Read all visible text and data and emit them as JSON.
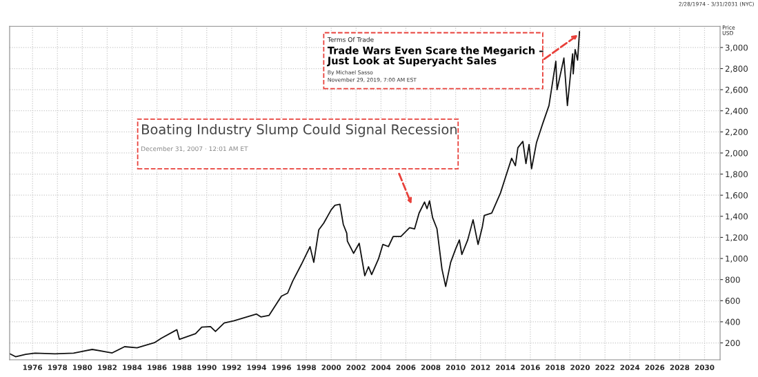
{
  "chart_data": {
    "type": "line",
    "ylabel": "Price\nUSD",
    "xlim": [
      1974.16,
      2031.25
    ],
    "ylim": [
      40,
      3200
    ],
    "xticks": [
      1976,
      1978,
      1980,
      1982,
      1984,
      1986,
      1988,
      1990,
      1992,
      1994,
      1996,
      1998,
      2000,
      2002,
      2004,
      2006,
      2008,
      2010,
      2012,
      2014,
      2016,
      2018,
      2020,
      2022,
      2024,
      2026,
      2028,
      2030
    ],
    "yticks": [
      200,
      400,
      600,
      800,
      {
        "value": 1000,
        "label": "1,000"
      },
      {
        "value": 1200,
        "label": "1,200"
      },
      {
        "value": 1400,
        "label": "1,400"
      },
      {
        "value": 1600,
        "label": "1,600"
      },
      {
        "value": 1800,
        "label": "1,800"
      },
      {
        "value": 2000,
        "label": "2,000"
      },
      {
        "value": 2200,
        "label": "2,200"
      },
      {
        "value": 2400,
        "label": "2,400"
      },
      {
        "value": 2600,
        "label": "2,600"
      },
      {
        "value": 2800,
        "label": "2,800"
      },
      {
        "value": 3000,
        "label": "3,000"
      }
    ],
    "grid": true,
    "marker": "none",
    "line_style": "solid",
    "series": [
      {
        "color": "#111111",
        "x": [
          1974.2,
          1974.64,
          1975.45,
          1976.2,
          1977.8,
          1979.3,
          1980.8,
          1982.4,
          1983.4,
          1984.4,
          1985.8,
          1986.35,
          1987.6,
          1987.8,
          1989.1,
          1989.6,
          1990.3,
          1990.7,
          1991.4,
          1992.2,
          1994.0,
          1994.35,
          1995.0,
          1996.0,
          1996.5,
          1996.9,
          1997.6,
          1998.3,
          1998.6,
          1999.0,
          1999.4,
          2000.0,
          2000.3,
          2000.7,
          2000.97,
          2001.25,
          2001.3,
          2001.8,
          2002.25,
          2002.7,
          2003.0,
          2003.25,
          2003.8,
          2004.15,
          2004.6,
          2004.98,
          2005.6,
          2006.3,
          2006.7,
          2007.06,
          2007.5,
          2007.7,
          2007.9,
          2008.15,
          2008.5,
          2008.9,
          2009.2,
          2009.6,
          2010.0,
          2010.3,
          2010.5,
          2010.97,
          2011.4,
          2011.8,
          2012.15,
          2012.3,
          2012.9,
          2013.6,
          2014.0,
          2014.5,
          2014.8,
          2015.0,
          2015.4,
          2015.65,
          2015.9,
          2016.1,
          2016.5,
          2017.0,
          2017.5,
          2018.05,
          2018.15,
          2018.7,
          2018.98,
          2019.3,
          2019.4,
          2019.45,
          2019.6,
          2019.8,
          2019.95
        ],
        "values": [
          96,
          69,
          92,
          103,
          96,
          103,
          138,
          105,
          164,
          154,
          202,
          244,
          325,
          234,
          287,
          350,
          354,
          308,
          389,
          410,
          473,
          446,
          460,
          643,
          672,
          784,
          943,
          1112,
          964,
          1271,
          1335,
          1462,
          1504,
          1514,
          1324,
          1240,
          1165,
          1049,
          1144,
          837,
          922,
          848,
          996,
          1133,
          1113,
          1208,
          1208,
          1292,
          1281,
          1430,
          1535,
          1472,
          1546,
          1387,
          1281,
          900,
          735,
          964,
          1091,
          1176,
          1038,
          1176,
          1367,
          1133,
          1303,
          1408,
          1430,
          1620,
          1768,
          1950,
          1880,
          2050,
          2110,
          1900,
          2080,
          1850,
          2100,
          2280,
          2450,
          2870,
          2600,
          2900,
          2450,
          2830,
          2940,
          2750,
          2980,
          2880,
          3150
        ]
      }
    ],
    "annotations": [
      "2/28/1974 - 3/31/2031 (NYC)",
      "Terms Of Trade",
      {
        "text": "Trade Wars Even Scare the Megarich –\nJust Look at Superyacht Sales",
        "x": 2019.95,
        "y": 3130
      },
      "By Michael Sasso",
      "November 29, 2019, 7:00 AM EST",
      "Boating Industry Slump Could Signal Recession",
      "December 31, 2007 · 12:01 AM ET"
    ]
  }
}
